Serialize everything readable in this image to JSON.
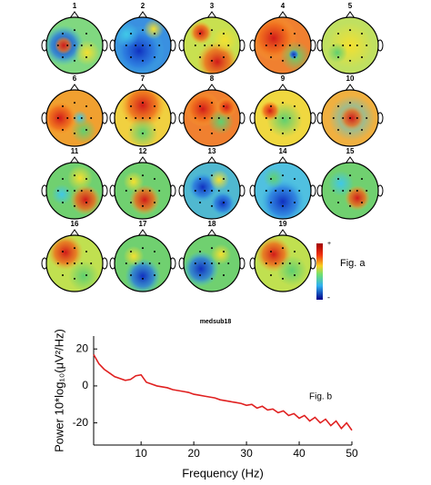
{
  "topomaps": {
    "labels": [
      "1",
      "2",
      "3",
      "4",
      "5",
      "6",
      "7",
      "8",
      "9",
      "10",
      "11",
      "12",
      "13",
      "14",
      "15",
      "16",
      "17",
      "18",
      "19"
    ],
    "colorbar_labels": [
      "+",
      "-"
    ],
    "annotation": "Fig. a",
    "subject": "medsub18"
  },
  "chart_data": {
    "type": "line",
    "annotation": "Fig. b",
    "x_label": "Frequency (Hz)",
    "y_label": "Power 10*log₁₀(μV²/Hz)",
    "x": [
      1,
      2,
      3,
      4,
      5,
      6,
      7,
      8,
      9,
      10,
      11,
      12,
      13,
      14,
      15,
      16,
      17,
      18,
      19,
      20,
      21,
      22,
      23,
      24,
      25,
      26,
      27,
      28,
      29,
      30,
      31,
      32,
      33,
      34,
      35,
      36,
      37,
      38,
      39,
      40,
      41,
      42,
      43,
      44,
      45,
      46,
      47,
      48,
      49,
      50
    ],
    "series": [
      {
        "color": "#e02020",
        "values": [
          17,
          12,
          9,
          7,
          5,
          4,
          3,
          3.5,
          5.5,
          6,
          2,
          1,
          0,
          -0.5,
          -1,
          -2,
          -2.5,
          -3,
          -3.5,
          -4.5,
          -5,
          -5.5,
          -6,
          -6.5,
          -7.5,
          -8,
          -8.5,
          -9,
          -9.5,
          -10.5,
          -10,
          -12,
          -11,
          -13,
          -12.5,
          -14.5,
          -13.5,
          -16,
          -15,
          -17.5,
          -16,
          -19,
          -17,
          -20,
          -18,
          -21.5,
          -19,
          -23,
          -20,
          -24
        ]
      }
    ],
    "xlim": [
      1,
      50
    ],
    "xticks": [
      10,
      20,
      30,
      40,
      50
    ],
    "ylim": [
      -32,
      27
    ],
    "yticks": [
      -20,
      0,
      20
    ]
  }
}
